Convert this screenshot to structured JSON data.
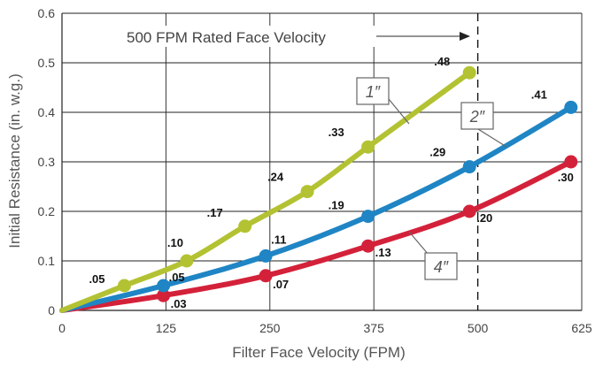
{
  "chart_data": {
    "type": "line",
    "title": "",
    "xlabel": "Filter Face Velocity (FPM)",
    "ylabel": "Initial Resistance (in. w.g.)",
    "xlim": [
      0,
      625
    ],
    "ylim": [
      0,
      0.6
    ],
    "x_ticks": [
      0,
      125,
      250,
      375,
      500,
      625
    ],
    "x_tick_labels": [
      "0",
      "125",
      "250",
      "375",
      "500",
      "625"
    ],
    "y_ticks": [
      0,
      0.1,
      0.2,
      0.3,
      0.4,
      0.5,
      0.6
    ],
    "y_tick_labels": [
      "0",
      "0.1",
      "0.2",
      "0.3",
      "0.4",
      "0.5",
      "0.6"
    ],
    "grid": true,
    "reference_line": {
      "x": 500,
      "style": "dashed",
      "label": "500 FPM Rated Face Velocity"
    },
    "series": [
      {
        "name": "1″",
        "color": "#b3c232",
        "points": [
          {
            "x": 0,
            "y": 0,
            "label": ""
          },
          {
            "x": 75,
            "y": 0.05,
            "label": ".05"
          },
          {
            "x": 150,
            "y": 0.1,
            "label": ".10"
          },
          {
            "x": 220,
            "y": 0.17,
            "label": ".17"
          },
          {
            "x": 295,
            "y": 0.24,
            "label": ".24"
          },
          {
            "x": 368,
            "y": 0.33,
            "label": ".33"
          },
          {
            "x": 490,
            "y": 0.48,
            "label": ".48"
          }
        ]
      },
      {
        "name": "2″",
        "color": "#1f85c4",
        "points": [
          {
            "x": 0,
            "y": 0,
            "label": ""
          },
          {
            "x": 122,
            "y": 0.05,
            "label": ".05"
          },
          {
            "x": 245,
            "y": 0.11,
            "label": ".11"
          },
          {
            "x": 368,
            "y": 0.19,
            "label": ".19"
          },
          {
            "x": 490,
            "y": 0.29,
            "label": ".29"
          },
          {
            "x": 612,
            "y": 0.41,
            "label": ".41"
          }
        ]
      },
      {
        "name": "4″",
        "color": "#d4213a",
        "points": [
          {
            "x": 0,
            "y": 0,
            "label": ""
          },
          {
            "x": 122,
            "y": 0.03,
            "label": ".03"
          },
          {
            "x": 245,
            "y": 0.07,
            "label": ".07"
          },
          {
            "x": 368,
            "y": 0.13,
            "label": ".13"
          },
          {
            "x": 490,
            "y": 0.2,
            "label": ".20"
          },
          {
            "x": 612,
            "y": 0.3,
            "label": ".30"
          }
        ]
      }
    ]
  }
}
